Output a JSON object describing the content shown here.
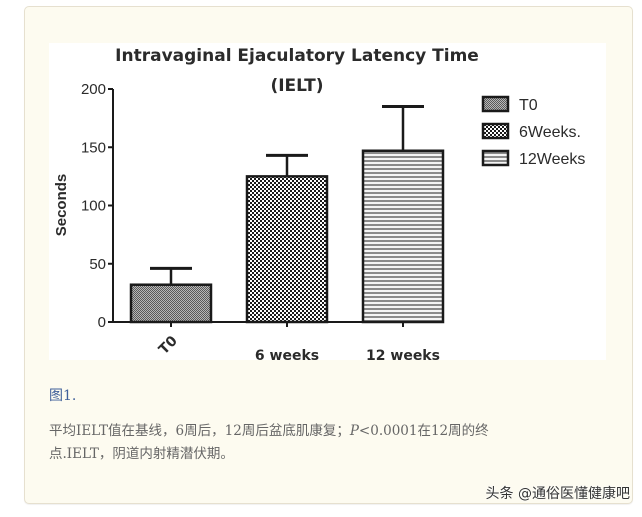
{
  "figure": {
    "label": "图1.",
    "caption_line1_pre": "平均IELT值在基线，6周后，12周后盆底肌康复；",
    "caption_p": "P",
    "caption_line1_post": "<0.0001在12周的终",
    "caption_line2": "点.IELT，阴道内射精潜伏期。"
  },
  "watermark": "头条 @通俗医懂健康吧",
  "chart_data": {
    "type": "bar",
    "title": "Intravaginal Ejaculatory Latency Time",
    "subtitle": "(IELT)",
    "xlabel": "",
    "ylabel": "Seconds",
    "ylim": [
      0,
      200
    ],
    "yticks": [
      0,
      50,
      100,
      150,
      200
    ],
    "grid": false,
    "legend_position": "right",
    "categories": [
      "T0",
      "6 weeks",
      "12 weeks"
    ],
    "values": [
      32,
      125,
      147
    ],
    "error_upper": [
      46,
      143,
      185
    ],
    "legend": [
      "T0",
      "6Weeks.",
      "12Weeks"
    ],
    "patterns": [
      "fine-checker",
      "dot-checker",
      "horizontal-stripes"
    ]
  },
  "colors": {
    "card_bg": "#fdfbf0",
    "figure_label": "#3f5f9a",
    "caption_text": "#666666",
    "axis": "#1a1a1a"
  }
}
